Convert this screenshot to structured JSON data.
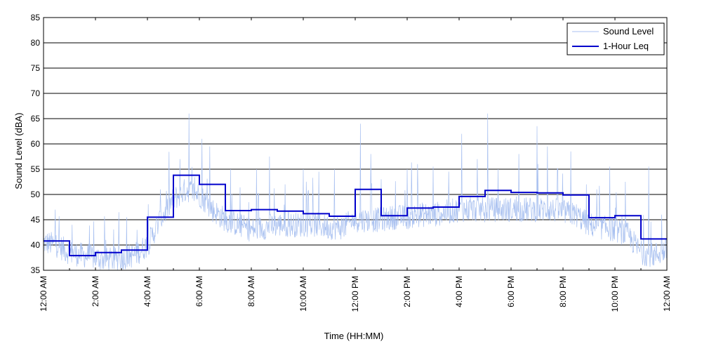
{
  "chart_data": {
    "type": "line",
    "xlabel": "Time (HH:MM)",
    "ylabel": "Sound Level (dBA)",
    "xlim": [
      0,
      24
    ],
    "ylim": [
      35,
      85
    ],
    "y_ticks": [
      35,
      40,
      45,
      50,
      55,
      60,
      65,
      70,
      75,
      80,
      85
    ],
    "x_ticks": [
      0,
      2,
      4,
      6,
      8,
      10,
      12,
      14,
      16,
      18,
      20,
      22,
      24
    ],
    "x_tick_labels": [
      "12:00 AM",
      "2:00 AM",
      "4:00 AM",
      "6:00 AM",
      "8:00 AM",
      "10:00 AM",
      "12:00 PM",
      "2:00 PM",
      "4:00 PM",
      "6:00 PM",
      "8:00 PM",
      "10:00 PM",
      "12:00 AM"
    ],
    "grid": {
      "horizontal": true,
      "vertical": false
    },
    "legend_position": "top-right",
    "series": [
      {
        "name": "Sound Level",
        "kind": "noisy",
        "color": "#a8c0f0",
        "x": [
          0,
          0.5,
          1,
          1.5,
          2,
          2.5,
          3,
          3.5,
          4,
          4.5,
          5,
          5.5,
          6,
          6.5,
          7,
          7.5,
          8,
          8.5,
          9,
          9.5,
          10,
          10.5,
          11,
          11.5,
          12,
          12.5,
          13,
          13.5,
          14,
          14.5,
          15,
          15.5,
          16,
          16.5,
          17,
          17.5,
          18,
          18.5,
          19,
          19.5,
          20,
          20.5,
          21,
          21.5,
          22,
          22.5,
          23,
          23.5,
          24
        ],
        "y": [
          40.5,
          40,
          38.5,
          38,
          37.5,
          37,
          37.5,
          38,
          40,
          45,
          49,
          51,
          50,
          47,
          45,
          44,
          43,
          43.5,
          44,
          44,
          44,
          44,
          43.5,
          43.5,
          45,
          45,
          45,
          45.5,
          45.5,
          46,
          46,
          46.5,
          47,
          47,
          47,
          47,
          47,
          47,
          47,
          47,
          46.5,
          46,
          44,
          43.5,
          43,
          42,
          38.5,
          38,
          39
        ],
        "peaks": [
          [
            0.45,
            47
          ],
          [
            1.1,
            44
          ],
          [
            2.4,
            41
          ],
          [
            2.9,
            46.5
          ],
          [
            3.2,
            45.5
          ],
          [
            3.6,
            43
          ],
          [
            4.5,
            51
          ],
          [
            5.25,
            57
          ],
          [
            5.6,
            66
          ],
          [
            6.1,
            61
          ],
          [
            6.4,
            59.5
          ],
          [
            7.2,
            55
          ],
          [
            8.2,
            55
          ],
          [
            8.7,
            57.5
          ],
          [
            9.3,
            52
          ],
          [
            10.0,
            55
          ],
          [
            10.6,
            54.5
          ],
          [
            11.2,
            55
          ],
          [
            12.2,
            64
          ],
          [
            12.6,
            58
          ],
          [
            13.0,
            53
          ],
          [
            14.0,
            55
          ],
          [
            14.4,
            56
          ],
          [
            15.0,
            55.5
          ],
          [
            16.1,
            62
          ],
          [
            16.7,
            57
          ],
          [
            17.1,
            66
          ],
          [
            17.5,
            55
          ],
          [
            18.3,
            58
          ],
          [
            19.0,
            63.5
          ],
          [
            19.4,
            59.5
          ],
          [
            19.8,
            55
          ],
          [
            20.3,
            58.5
          ],
          [
            20.9,
            52
          ],
          [
            21.3,
            51
          ],
          [
            21.8,
            55.5
          ],
          [
            22.4,
            52.5
          ],
          [
            23.3,
            55.5
          ],
          [
            23.8,
            46
          ]
        ]
      },
      {
        "name": "1-Hour Leq",
        "kind": "step",
        "color": "#0000cc",
        "hours": [
          0,
          1,
          2,
          3,
          4,
          5,
          6,
          7,
          8,
          9,
          10,
          11,
          12,
          13,
          14,
          15,
          16,
          17,
          18,
          19,
          20,
          21,
          22,
          23
        ],
        "values": [
          40.8,
          37.9,
          38.5,
          39.0,
          45.5,
          53.8,
          52.0,
          46.8,
          47.0,
          46.7,
          46.2,
          45.7,
          51.0,
          45.8,
          47.3,
          47.5,
          49.6,
          50.8,
          50.4,
          50.3,
          49.9,
          45.4,
          45.8,
          41.2
        ]
      }
    ]
  }
}
